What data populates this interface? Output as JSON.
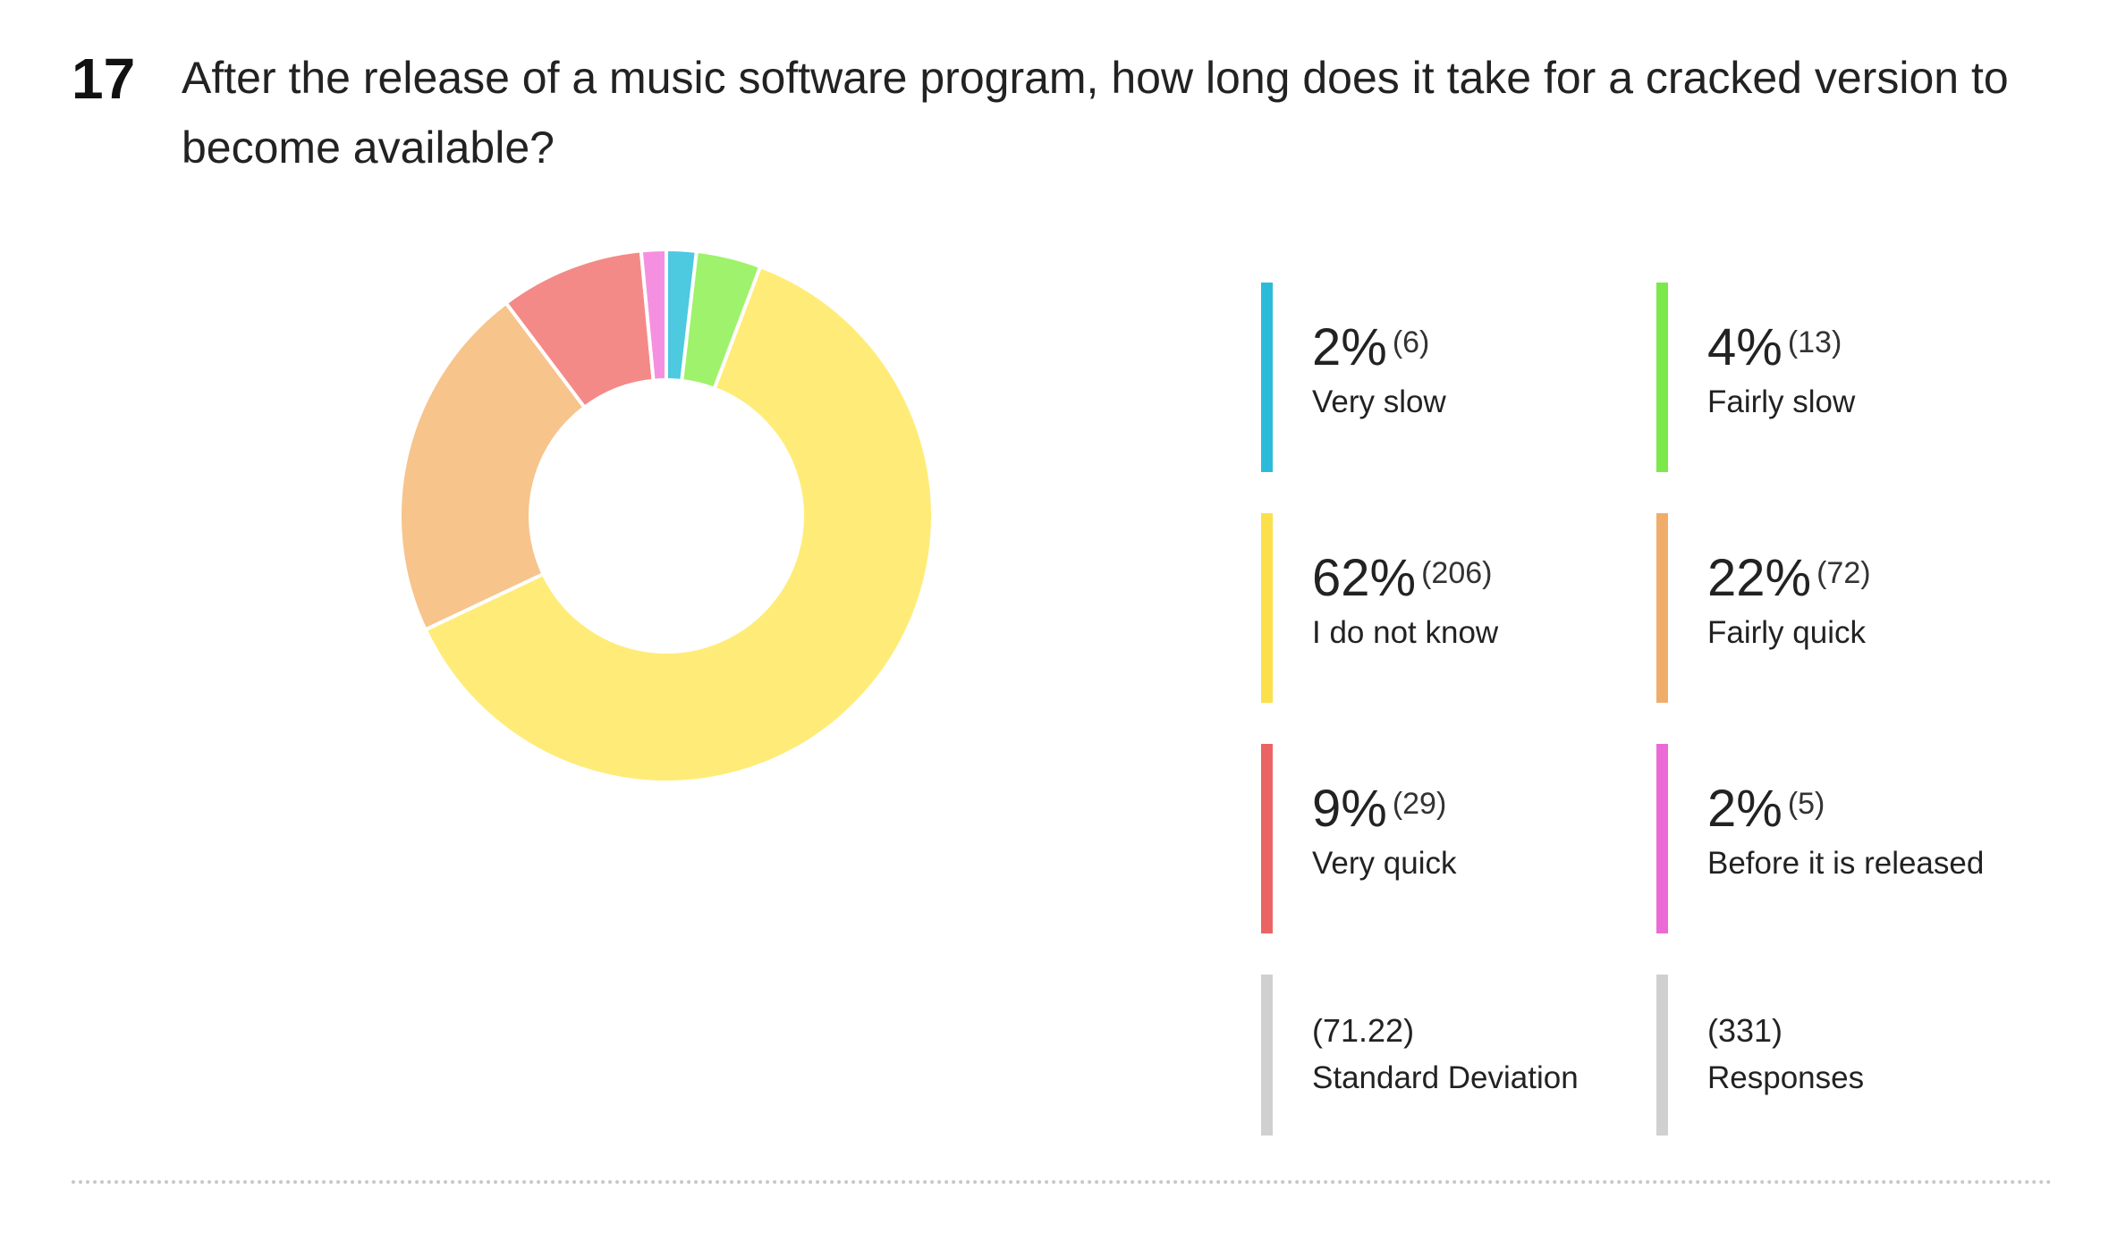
{
  "question": {
    "number": "17",
    "title": "After the release of a music software program, how long does it take for a cracked version to become available?"
  },
  "chart_data": {
    "type": "pie",
    "donut": true,
    "slices": [
      {
        "label": "Very slow",
        "percent_label": "2%",
        "count": 6,
        "count_label": "(6)",
        "color": "#4dc9e0"
      },
      {
        "label": "Fairly slow",
        "percent_label": "4%",
        "count": 13,
        "count_label": "(13)",
        "color": "#9ff26b"
      },
      {
        "label": "I do not know",
        "percent_label": "62%",
        "count": 206,
        "count_label": "(206)",
        "color": "#ffec78"
      },
      {
        "label": "Fairly quick",
        "percent_label": "22%",
        "count": 72,
        "count_label": "(72)",
        "color": "#f7c48c"
      },
      {
        "label": "Very quick",
        "percent_label": "9%",
        "count": 29,
        "count_label": "(29)",
        "color": "#f48a87"
      },
      {
        "label": "Before it is released",
        "percent_label": "2%",
        "count": 5,
        "count_label": "(5)",
        "color": "#f590e0"
      }
    ],
    "legend_bar_colors": [
      "#2bbbd8",
      "#7ce84a",
      "#fbe04a",
      "#f0ad6a",
      "#eb6464",
      "#ec6ad6"
    ]
  },
  "stats": {
    "std_dev": {
      "value": "(71.22)",
      "label": "Standard Deviation"
    },
    "responses": {
      "value": "(331)",
      "label": "Responses"
    },
    "bar_color": "#d0d0d0"
  }
}
